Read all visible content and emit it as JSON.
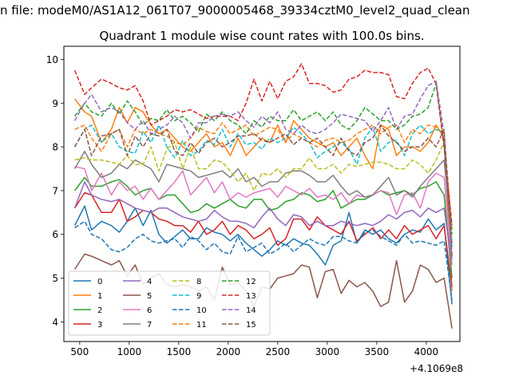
{
  "figure": {
    "suptitle": "n file: modeM0/AS1A12_061T07_9000005468_39334cztM0_level2_quad_clean",
    "title": "Quadrant 1 module wise count rates with 100.0s bins.",
    "offset_label": "+4.1069e8"
  },
  "chart_data": {
    "type": "line",
    "title": "Quadrant 1 module wise count rates with 100.0s bins.",
    "xlabel": "",
    "ylabel": "",
    "x_offset": "+4.1069e8",
    "xlim": [
      340,
      4340
    ],
    "ylim": [
      3.55,
      10.3
    ],
    "xticks": [
      500,
      1000,
      1500,
      2000,
      2500,
      3000,
      3500,
      4000
    ],
    "yticks": [
      4,
      5,
      6,
      7,
      8,
      9,
      10
    ],
    "grid": false,
    "legend_position": "lower-left",
    "legend_columns": 4,
    "x": [
      450,
      550,
      620,
      720,
      820,
      900,
      980,
      1060,
      1140,
      1220,
      1300,
      1380,
      1460,
      1540,
      1620,
      1700,
      1780,
      1860,
      1940,
      2020,
      2100,
      2180,
      2260,
      2340,
      2420,
      2500,
      2580,
      2660,
      2740,
      2820,
      2900,
      2980,
      3060,
      3140,
      3220,
      3300,
      3380,
      3460,
      3540,
      3620,
      3700,
      3780,
      3860,
      3940,
      4020,
      4100,
      4180,
      4260
    ],
    "series": [
      {
        "name": "0",
        "color": "#1f77b4",
        "dashed": false,
        "values": [
          6.2,
          6.65,
          6.1,
          6.3,
          6.2,
          6.05,
          6.3,
          6.6,
          6.2,
          6.55,
          6.0,
          5.8,
          5.95,
          6.1,
          5.9,
          5.9,
          6.15,
          6.05,
          6.0,
          5.85,
          6.0,
          5.8,
          5.65,
          5.5,
          5.65,
          5.85,
          5.75,
          5.9,
          5.8,
          5.75,
          5.55,
          5.3,
          5.75,
          5.85,
          6.5,
          5.8,
          6.1,
          6.0,
          6.1,
          5.9,
          5.8,
          6.0,
          6.1,
          6.05,
          6.35,
          6.1,
          6.25,
          4.4
        ]
      },
      {
        "name": "1",
        "color": "#ff7f0e",
        "dashed": false,
        "values": [
          9.1,
          8.8,
          8.7,
          8.1,
          8.4,
          8.9,
          8.55,
          8.9,
          8.8,
          8.5,
          8.3,
          8.4,
          8.2,
          8.0,
          7.9,
          8.1,
          8.3,
          8.0,
          8.1,
          7.8,
          8.2,
          7.8,
          8.0,
          8.2,
          8.1,
          8.5,
          8.1,
          8.6,
          8.4,
          8.2,
          8.1,
          8.0,
          8.1,
          7.8,
          8.0,
          8.2,
          7.8,
          7.5,
          8.5,
          8.4,
          7.8,
          8.0,
          8.0,
          7.9,
          8.1,
          8.5,
          8.2,
          4.7
        ]
      },
      {
        "name": "2",
        "color": "#2ca02c",
        "dashed": false,
        "values": [
          7.0,
          7.3,
          7.1,
          7.1,
          7.2,
          7.25,
          7.1,
          6.9,
          7.0,
          7.05,
          6.8,
          6.9,
          6.9,
          6.7,
          6.5,
          6.55,
          6.7,
          6.6,
          6.7,
          6.8,
          6.65,
          6.6,
          6.8,
          6.8,
          6.55,
          6.6,
          6.75,
          6.8,
          6.95,
          6.9,
          6.75,
          6.8,
          7.0,
          6.6,
          6.7,
          6.8,
          6.8,
          6.9,
          7.0,
          6.9,
          6.95,
          7.0,
          6.9,
          7.05,
          7.1,
          7.2,
          6.9,
          5.0
        ]
      },
      {
        "name": "3",
        "color": "#d62728",
        "dashed": false,
        "values": [
          6.6,
          6.95,
          6.9,
          6.5,
          6.5,
          6.8,
          6.3,
          6.4,
          6.55,
          6.5,
          6.35,
          6.3,
          6.2,
          6.2,
          6.05,
          6.3,
          6.0,
          6.1,
          6.3,
          6.0,
          6.2,
          6.1,
          5.9,
          6.0,
          6.15,
          5.75,
          5.9,
          6.35,
          6.35,
          6.1,
          6.4,
          6.2,
          6.1,
          6.0,
          6.3,
          5.85,
          6.0,
          6.15,
          5.9,
          6.1,
          5.9,
          6.2,
          6.0,
          6.1,
          6.2,
          5.9,
          6.2,
          4.8
        ]
      },
      {
        "name": "4",
        "color": "#9467bd",
        "dashed": false,
        "values": [
          6.6,
          7.2,
          6.9,
          6.8,
          6.75,
          6.8,
          6.7,
          6.6,
          6.55,
          6.5,
          6.6,
          6.6,
          6.5,
          6.4,
          6.35,
          6.3,
          6.35,
          6.55,
          6.4,
          6.3,
          6.3,
          6.25,
          6.15,
          6.4,
          6.6,
          6.35,
          6.2,
          6.45,
          6.4,
          6.2,
          6.3,
          6.2,
          6.2,
          6.3,
          6.25,
          6.2,
          6.25,
          6.2,
          6.3,
          6.45,
          6.35,
          6.5,
          6.55,
          6.4,
          6.6,
          6.5,
          6.6,
          5.3
        ]
      },
      {
        "name": "5",
        "color": "#8c564b",
        "dashed": false,
        "values": [
          5.2,
          5.55,
          5.5,
          5.4,
          5.3,
          5.4,
          5.05,
          5.3,
          4.85,
          5.0,
          5.1,
          4.85,
          4.8,
          4.85,
          4.8,
          4.7,
          4.8,
          4.5,
          5.25,
          4.85,
          4.9,
          4.7,
          4.35,
          4.8,
          4.75,
          5.0,
          5.05,
          5.1,
          5.3,
          5.25,
          4.55,
          5.15,
          5.2,
          4.65,
          4.95,
          4.8,
          4.9,
          4.7,
          4.35,
          4.45,
          5.4,
          4.45,
          4.7,
          5.3,
          5.2,
          4.9,
          5.0,
          3.85
        ]
      },
      {
        "name": "6",
        "color": "#e377c2",
        "dashed": false,
        "values": [
          7.55,
          7.5,
          7.0,
          7.4,
          6.9,
          7.2,
          7.0,
          7.1,
          6.8,
          7.05,
          6.8,
          7.0,
          7.2,
          7.45,
          6.9,
          7.1,
          7.3,
          6.95,
          7.2,
          6.8,
          6.95,
          6.85,
          6.95,
          7.0,
          7.05,
          6.85,
          7.1,
          7.0,
          6.9,
          7.05,
          6.85,
          6.9,
          6.8,
          6.95,
          6.7,
          6.9,
          6.85,
          6.9,
          7.0,
          6.95,
          6.45,
          6.9,
          6.95,
          6.6,
          7.2,
          7.4,
          7.3,
          5.3
        ]
      },
      {
        "name": "7",
        "color": "#7f7f7f",
        "dashed": false,
        "values": [
          7.5,
          7.9,
          7.6,
          7.3,
          7.4,
          7.6,
          7.5,
          7.7,
          7.6,
          7.5,
          7.2,
          7.6,
          7.55,
          7.5,
          7.45,
          7.3,
          7.35,
          7.4,
          7.45,
          7.3,
          7.5,
          7.2,
          7.3,
          7.1,
          7.2,
          7.2,
          7.4,
          7.45,
          7.45,
          7.35,
          7.2,
          7.2,
          7.35,
          7.1,
          6.9,
          7.0,
          6.85,
          6.9,
          7.1,
          7.3,
          6.9,
          7.0,
          6.85,
          7.1,
          7.3,
          7.5,
          7.7,
          5.8
        ]
      },
      {
        "name": "8",
        "color": "#bcbd22",
        "dashed": true,
        "values": [
          7.7,
          7.75,
          7.7,
          7.7,
          7.65,
          7.6,
          7.8,
          7.6,
          7.6,
          8.0,
          7.45,
          7.95,
          8.1,
          7.5,
          8.0,
          7.5,
          7.5,
          7.7,
          7.65,
          7.45,
          7.2,
          7.4,
          7.0,
          7.4,
          7.35,
          7.5,
          7.3,
          7.5,
          7.5,
          7.75,
          7.5,
          7.5,
          7.6,
          7.4,
          7.6,
          7.55,
          7.6,
          7.65,
          7.65,
          7.6,
          7.5,
          7.5,
          7.7,
          7.6,
          7.4,
          7.7,
          8.1,
          5.8
        ]
      },
      {
        "name": "9",
        "color": "#17becf",
        "dashed": true,
        "values": [
          8.0,
          8.4,
          8.5,
          8.1,
          8.3,
          8.0,
          7.9,
          7.85,
          8.35,
          8.1,
          8.5,
          8.0,
          7.75,
          8.15,
          7.8,
          7.9,
          8.15,
          8.05,
          8.4,
          8.0,
          8.3,
          8.05,
          8.1,
          7.95,
          8.2,
          8.1,
          8.2,
          8.45,
          8.3,
          8.1,
          7.75,
          7.9,
          8.0,
          8.1,
          7.95,
          7.6,
          8.2,
          8.45,
          7.9,
          8.1,
          8.15,
          7.8,
          8.3,
          8.5,
          8.3,
          8.4,
          8.3,
          5.7
        ]
      },
      {
        "name": "10",
        "color": "#1f77b4",
        "dashed": true,
        "values": [
          6.15,
          6.3,
          6.0,
          5.9,
          5.65,
          5.6,
          5.7,
          5.9,
          6.0,
          5.85,
          5.8,
          5.85,
          5.9,
          5.7,
          5.95,
          5.85,
          5.65,
          5.8,
          5.6,
          5.55,
          5.95,
          5.6,
          5.7,
          5.8,
          5.55,
          5.65,
          5.8,
          5.6,
          5.75,
          5.9,
          5.8,
          5.75,
          5.95,
          5.95,
          5.85,
          5.8,
          6.05,
          6.1,
          5.95,
          5.85,
          5.75,
          6.0,
          5.8,
          5.85,
          5.8,
          5.75,
          5.85,
          4.5
        ]
      },
      {
        "name": "11",
        "color": "#ff7f0e",
        "dashed": true,
        "values": [
          8.4,
          8.5,
          8.2,
          7.9,
          8.3,
          8.4,
          8.0,
          8.4,
          8.3,
          8.4,
          8.3,
          8.25,
          8.1,
          8.05,
          8.2,
          8.45,
          8.35,
          8.3,
          8.55,
          8.3,
          8.4,
          8.5,
          8.25,
          8.35,
          8.45,
          8.4,
          8.1,
          8.3,
          8.2,
          8.1,
          8.0,
          8.15,
          8.2,
          8.1,
          8.15,
          8.3,
          8.4,
          8.5,
          8.3,
          8.45,
          8.5,
          8.1,
          8.4,
          8.3,
          8.5,
          8.45,
          8.3,
          6.1
        ]
      },
      {
        "name": "12",
        "color": "#2ca02c",
        "dashed": true,
        "values": [
          8.7,
          9.0,
          8.8,
          8.7,
          9.0,
          8.75,
          9.05,
          8.8,
          8.5,
          8.65,
          8.6,
          8.85,
          8.6,
          8.7,
          8.55,
          8.35,
          8.75,
          8.6,
          8.8,
          8.6,
          8.5,
          8.3,
          8.6,
          8.45,
          8.7,
          8.6,
          8.6,
          8.85,
          8.6,
          8.7,
          8.8,
          8.6,
          8.8,
          8.5,
          8.4,
          8.6,
          8.9,
          8.75,
          8.6,
          8.6,
          8.4,
          8.5,
          8.7,
          8.75,
          8.9,
          9.45,
          8.0,
          6.0
        ]
      },
      {
        "name": "13",
        "color": "#d62728",
        "dashed": true,
        "values": [
          9.75,
          9.2,
          9.35,
          9.55,
          9.45,
          9.35,
          9.3,
          9.4,
          9.05,
          8.5,
          8.6,
          8.7,
          8.85,
          8.8,
          8.85,
          8.75,
          8.65,
          8.7,
          8.7,
          8.7,
          8.6,
          9.0,
          9.55,
          9.05,
          9.5,
          9.1,
          9.5,
          9.6,
          9.9,
          9.45,
          9.45,
          9.4,
          9.25,
          9.3,
          9.55,
          9.6,
          9.75,
          9.7,
          9.7,
          9.65,
          9.15,
          9.1,
          9.45,
          9.7,
          9.8,
          9.45,
          8.0,
          6.2
        ]
      },
      {
        "name": "14",
        "color": "#9467bd",
        "dashed": true,
        "values": [
          8.6,
          9.0,
          9.2,
          8.8,
          8.9,
          8.8,
          8.55,
          8.4,
          8.6,
          8.3,
          8.4,
          8.5,
          8.7,
          8.55,
          8.2,
          8.55,
          8.55,
          8.7,
          8.75,
          8.7,
          8.8,
          8.6,
          8.45,
          8.7,
          8.55,
          8.8,
          8.4,
          8.3,
          8.5,
          8.35,
          8.3,
          8.4,
          8.55,
          8.75,
          8.7,
          8.65,
          8.6,
          8.35,
          8.6,
          8.9,
          8.4,
          8.7,
          8.75,
          9.1,
          9.4,
          9.5,
          8.3,
          5.4
        ]
      },
      {
        "name": "15",
        "color": "#8c564b",
        "dashed": true,
        "values": [
          8.0,
          8.4,
          7.8,
          8.25,
          8.3,
          8.4,
          7.8,
          8.25,
          8.0,
          8.3,
          8.25,
          8.4,
          7.9,
          7.8,
          8.1,
          7.85,
          8.1,
          8.2,
          8.0,
          8.1,
          8.25,
          8.25,
          8.3,
          8.15,
          8.1,
          8.2,
          8.3,
          8.05,
          8.2,
          8.1,
          8.2,
          8.0,
          7.8,
          8.2,
          7.9,
          7.8,
          8.1,
          8.2,
          8.5,
          8.25,
          8.1,
          7.9,
          8.0,
          8.0,
          8.2,
          8.0,
          8.4,
          5.5
        ]
      }
    ]
  }
}
